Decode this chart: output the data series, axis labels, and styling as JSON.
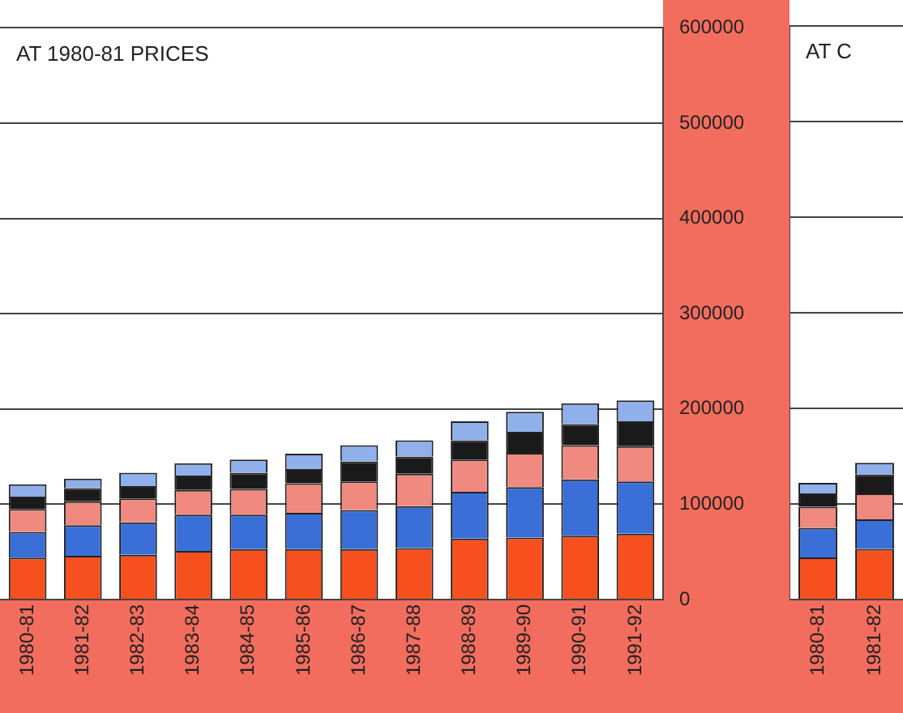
{
  "chart_data": [
    {
      "type": "bar",
      "stacked": true,
      "annotations": [
        "AT 1980-81 PRICES"
      ],
      "categories": [
        "1980-81",
        "1981-82",
        "1982-83",
        "1983-84",
        "1984-85",
        "1985-86",
        "1986-87",
        "1987-88",
        "1988-89",
        "1989-90",
        "1990-91",
        "1991-92"
      ],
      "series": [
        {
          "color": "#f5501e",
          "values": [
            44000,
            46000,
            47000,
            51000,
            53000,
            53000,
            53000,
            54000,
            64000,
            65000,
            67000,
            69000
          ]
        },
        {
          "color": "#3a6fd8",
          "values": [
            27000,
            32000,
            34000,
            38000,
            36000,
            38000,
            41000,
            44000,
            49000,
            53000,
            59000,
            55000
          ]
        },
        {
          "color": "#f08a80",
          "values": [
            24000,
            25000,
            25000,
            26000,
            27000,
            31000,
            30000,
            34000,
            34000,
            36000,
            36000,
            37000
          ]
        },
        {
          "color": "#1a1a1a",
          "values": [
            13000,
            14000,
            13000,
            15000,
            17000,
            15000,
            21000,
            18000,
            20000,
            22000,
            22000,
            26000
          ]
        },
        {
          "color": "#8fb0ea",
          "values": [
            13000,
            10000,
            14000,
            13000,
            14000,
            16000,
            17000,
            17000,
            20000,
            21000,
            22000,
            22000
          ]
        }
      ],
      "ylim": [
        0,
        600000
      ],
      "yticks": [
        0,
        100000,
        200000,
        300000,
        400000,
        500000,
        600000
      ],
      "grid": "y"
    },
    {
      "type": "bar",
      "stacked": true,
      "annotations": [
        "AT C"
      ],
      "tick_labels": "x",
      "categories": [
        "1980-81",
        "1981-82"
      ],
      "series": [
        {
          "color": "#f5501e",
          "values": [
            44000,
            53000
          ]
        },
        {
          "color": "#3a6fd8",
          "values": [
            31000,
            31000
          ]
        },
        {
          "color": "#f08a80",
          "values": [
            22000,
            27000
          ]
        },
        {
          "color": "#1a1a1a",
          "values": [
            14000,
            20000
          ]
        },
        {
          "color": "#8fb0ea",
          "values": [
            11000,
            12000
          ]
        }
      ],
      "ylim": [
        0,
        600000
      ],
      "yticks": [
        0,
        100000,
        200000,
        300000,
        400000,
        500000,
        600000
      ],
      "grid": "y"
    }
  ]
}
